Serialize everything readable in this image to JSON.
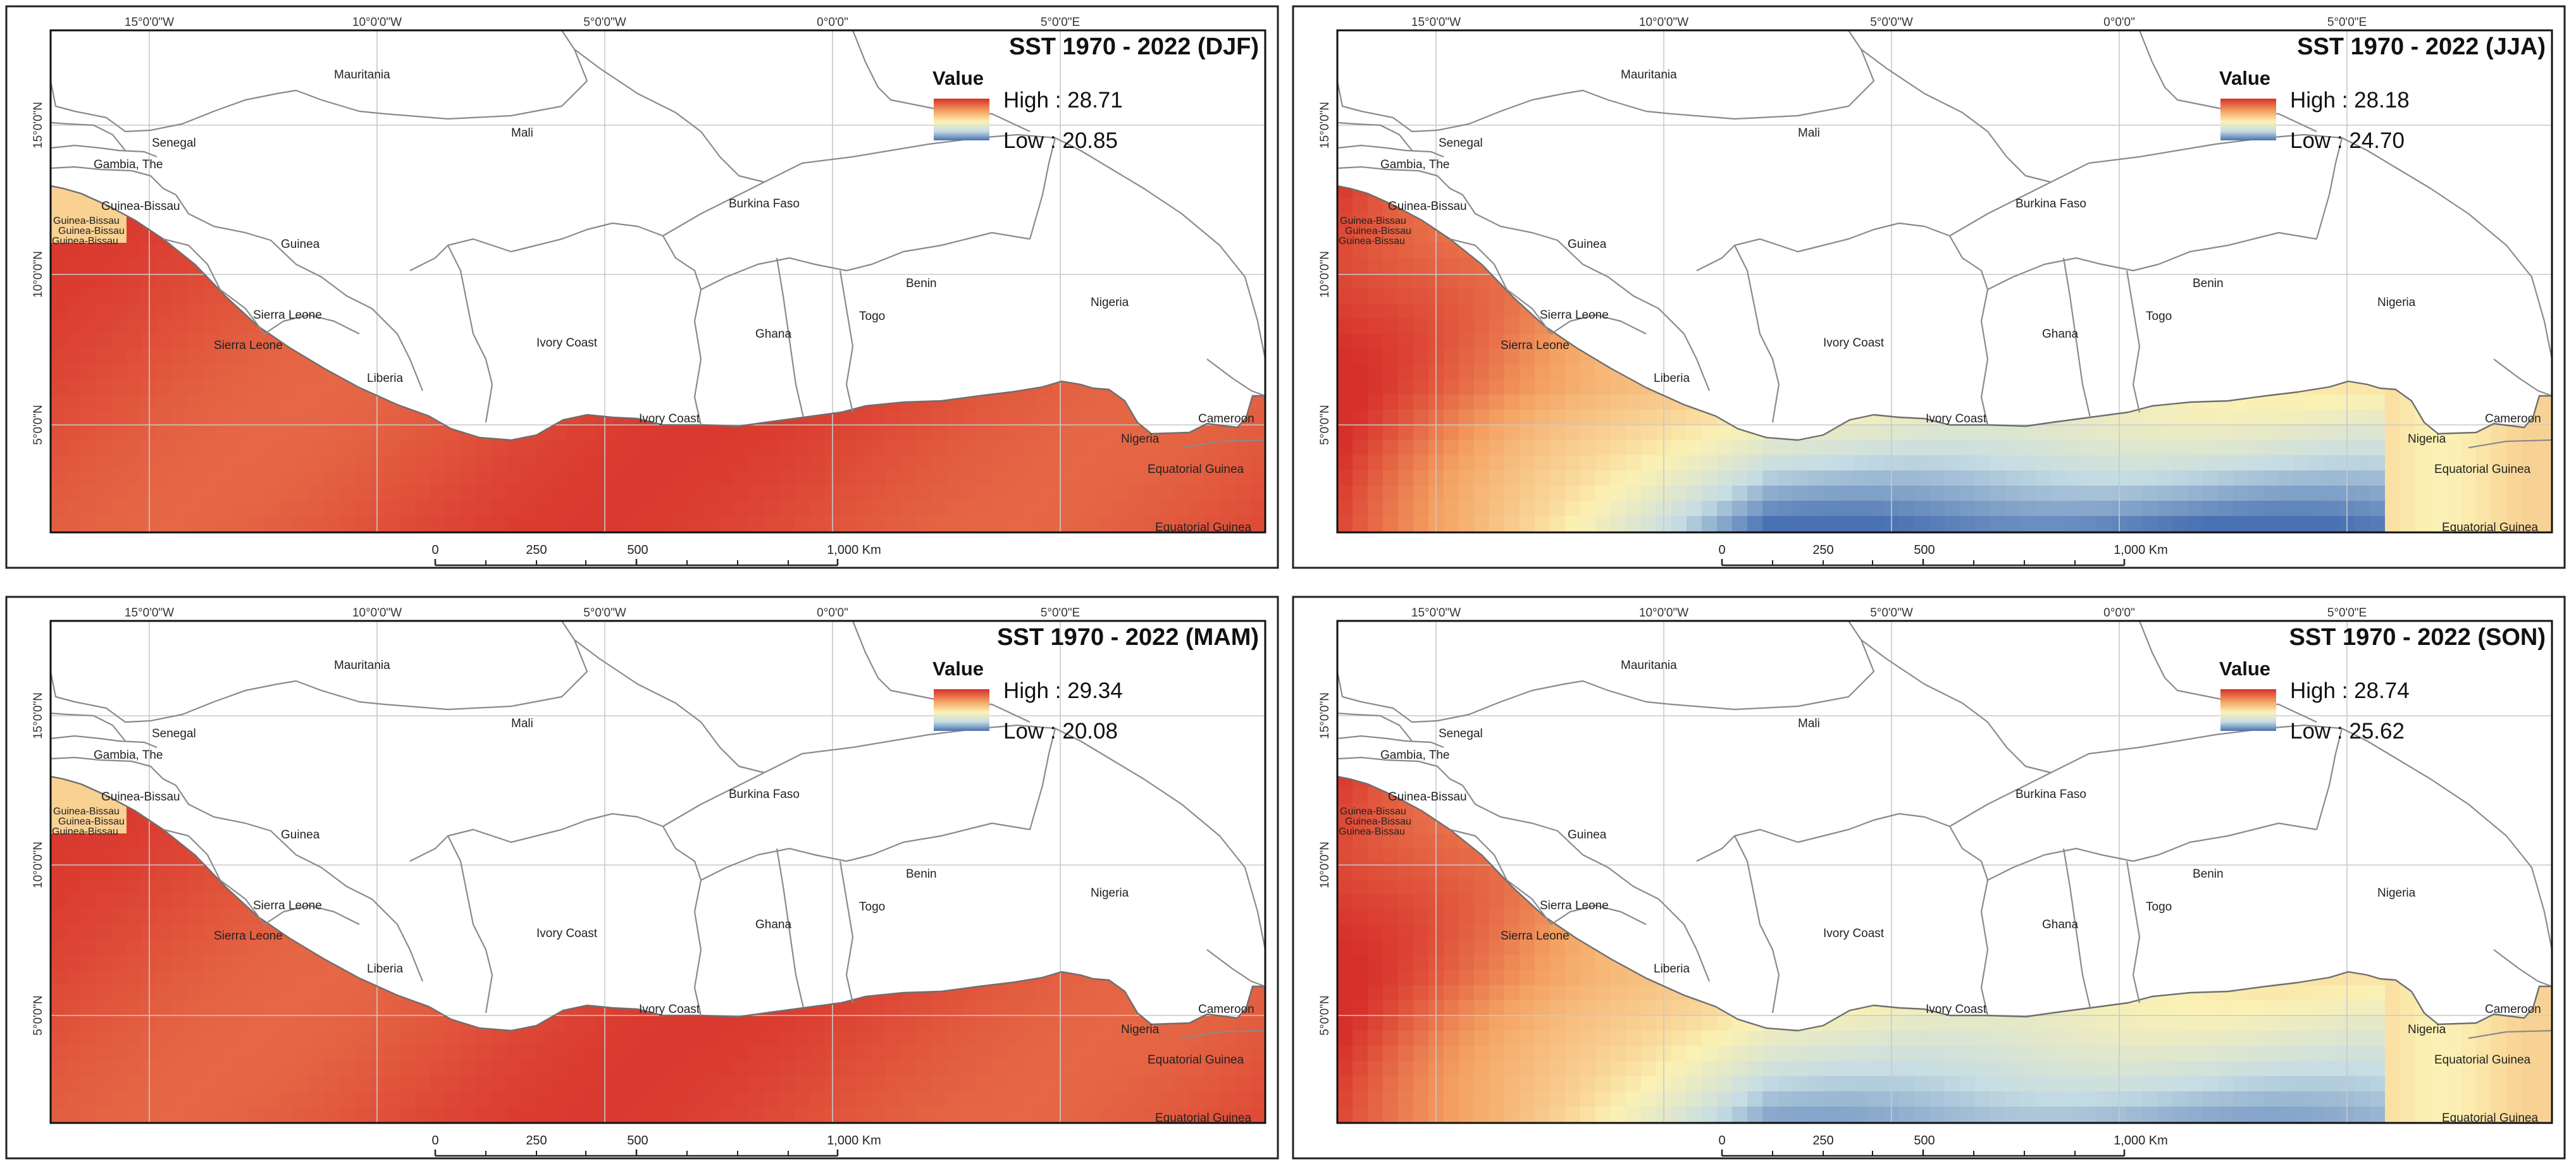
{
  "figure": {
    "panels": [
      {
        "id": "djf",
        "title": "SST 1970 - 2022 (DJF)",
        "legend": {
          "heading": "Value",
          "high": "High : 28.71",
          "low": "Low : 20.85"
        },
        "pattern": "warm"
      },
      {
        "id": "jja",
        "title": "SST 1970 - 2022 (JJA)",
        "legend": {
          "heading": "Value",
          "high": "High : 28.18",
          "low": "Low : 24.70"
        },
        "pattern": "upwelling_strong"
      },
      {
        "id": "mam",
        "title": "SST 1970 - 2022 (MAM)",
        "legend": {
          "heading": "Value",
          "high": "High : 29.34",
          "low": "Low : 20.08"
        },
        "pattern": "warm"
      },
      {
        "id": "son",
        "title": "SST 1970 - 2022 (SON)",
        "legend": {
          "heading": "Value",
          "high": "High : 28.74",
          "low": "Low : 25.62"
        },
        "pattern": "upwelling_mild"
      }
    ],
    "lon_ticks": [
      "15°0'0\"W",
      "10°0'0\"W",
      "5°0'0\"W",
      "0°0'0\"",
      "5°0'0\"E"
    ],
    "lat_ticks": [
      "15°0'0\"N",
      "10°0'0\"N",
      "5°0'0\"N"
    ],
    "countries": {
      "mauritania": "Mauritania",
      "mali": "Mali",
      "senegal": "Senegal",
      "gambia": "Gambia, The",
      "guinea_bissau": "Guinea-Bissau",
      "guinea_bissau_2": "Guinea-Bissau",
      "guinea_bissau_3": "Guinea-Bissau",
      "guinea_bissau_4": "Guinea-Bissau",
      "guinea": "Guinea",
      "burkina_faso": "Burkina Faso",
      "sierra_leone": "Sierra Leone",
      "sierra_leone_2": "Sierra Leone",
      "liberia": "Liberia",
      "ivory_coast": "Ivory Coast",
      "ivory_coast_2": "Ivory Coast",
      "ghana": "Ghana",
      "togo": "Togo",
      "benin": "Benin",
      "nigeria": "Nigeria",
      "nigeria_2": "Nigeria",
      "cameroon": "Cameroon",
      "equatorial_guinea": "Equatorial Guinea",
      "equatorial_guinea_2": "Equatorial Guinea"
    },
    "scale_bar": {
      "labels": [
        "0",
        "250",
        "500",
        "1,000 Km"
      ]
    },
    "colors": {
      "high": "#d7302a",
      "mid_high": "#f4a262",
      "mid": "#fbf1b4",
      "mid_low": "#c6dde4",
      "low": "#4a72b2"
    }
  }
}
